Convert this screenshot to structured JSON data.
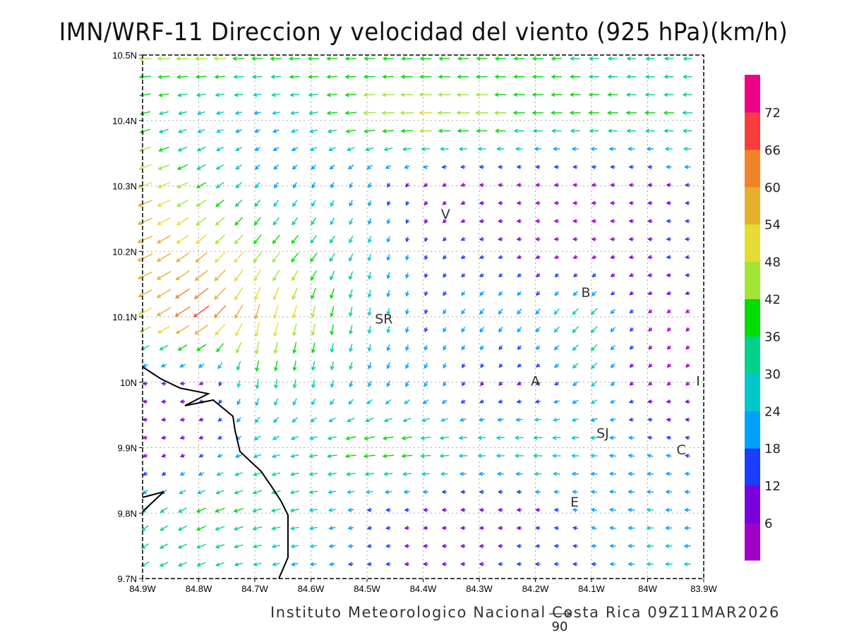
{
  "title": "IMN/WRF-11 Direccion y velocidad del viento (925 hPa)(km/h)",
  "footer": "Instituto Meteorologico Nacional Costa Rica 09Z11MAR2026",
  "reference_vector": {
    "label": "90",
    "speed_kmh": 90
  },
  "chart_data": {
    "type": "vector-field",
    "title": "IMN/WRF-11 Direccion y velocidad del viento (925 hPa)(km/h)",
    "units": "km/h",
    "lon_range": [
      -84.9,
      -83.9
    ],
    "lat_range": [
      9.7,
      10.5
    ],
    "grid": true,
    "x_tick_labels": [
      "84.9W",
      "84.8W",
      "84.7W",
      "84.6W",
      "84.5W",
      "84.4W",
      "84.3W",
      "84.2W",
      "84.1W",
      "84W",
      "83.9W"
    ],
    "y_tick_labels": [
      "10.5N",
      "10.4N",
      "10.3N",
      "10.2N",
      "10.1N",
      "10N",
      "9.9N",
      "9.8N",
      "9.7N"
    ],
    "coarse_lats": [
      10.5,
      10.4,
      10.3,
      10.2,
      10.1,
      10.0,
      9.9,
      9.8,
      9.7
    ],
    "coarse_lons": [
      -84.9,
      -84.8,
      -84.7,
      -84.6,
      -84.5,
      -84.4,
      -84.3,
      -84.2,
      -84.1,
      -84.0,
      -83.9
    ],
    "u": [
      [
        -45,
        -45,
        -42,
        -40,
        -38,
        -38,
        -38,
        -38,
        -35,
        -30,
        -30
      ],
      [
        -35,
        -25,
        -20,
        -30,
        -45,
        -50,
        -45,
        -40,
        -38,
        -38,
        -35
      ],
      [
        -50,
        -35,
        -15,
        -10,
        -8,
        -5,
        -5,
        -3,
        -3,
        -5,
        -20
      ],
      [
        -55,
        -40,
        -30,
        -25,
        -8,
        -5,
        -15,
        -5,
        -3,
        -10,
        -20
      ],
      [
        -45,
        -60,
        -15,
        -10,
        -5,
        -5,
        -15,
        -15,
        -25,
        -3,
        -3
      ],
      [
        -10,
        -5,
        -5,
        -5,
        -8,
        -10,
        -5,
        -10,
        -20,
        -3,
        -3
      ],
      [
        -5,
        -8,
        -25,
        -30,
        -45,
        -40,
        -30,
        -35,
        -25,
        -20,
        -15
      ],
      [
        -20,
        -35,
        -35,
        -30,
        -15,
        -10,
        -5,
        -10,
        -20,
        -25,
        -20
      ],
      [
        -30,
        -30,
        -25,
        -20,
        -15,
        -10,
        -10,
        -20,
        -15,
        -25,
        -25
      ]
    ],
    "v": [
      [
        0,
        0,
        0,
        0,
        0,
        0,
        0,
        0,
        0,
        0,
        0
      ],
      [
        -10,
        -8,
        -5,
        -5,
        -3,
        0,
        0,
        0,
        0,
        0,
        0
      ],
      [
        -20,
        -20,
        -20,
        -20,
        -18,
        -5,
        0,
        0,
        0,
        0,
        0
      ],
      [
        -25,
        -35,
        -35,
        -30,
        -25,
        -15,
        -3,
        0,
        0,
        0,
        0
      ],
      [
        -25,
        -40,
        -55,
        -45,
        -30,
        -15,
        -20,
        -20,
        -25,
        -3,
        -3
      ],
      [
        0,
        0,
        -35,
        -30,
        -20,
        -20,
        -10,
        -3,
        -20,
        -3,
        -3
      ],
      [
        0,
        -3,
        -10,
        -5,
        -5,
        -3,
        0,
        0,
        0,
        5,
        3
      ],
      [
        -20,
        -15,
        -10,
        -5,
        -3,
        0,
        0,
        0,
        5,
        0,
        0
      ],
      [
        -15,
        -10,
        -5,
        -3,
        -3,
        0,
        0,
        0,
        0,
        0,
        0
      ]
    ],
    "colorbar": {
      "levels": [
        "6",
        "12",
        "18",
        "24",
        "30",
        "36",
        "42",
        "48",
        "54",
        "60",
        "66",
        "72"
      ],
      "colors": [
        "#a000c8",
        "#7800dc",
        "#1e3cff",
        "#00a0ff",
        "#00c8c8",
        "#00d28c",
        "#00dc00",
        "#a0e632",
        "#e6dc32",
        "#e6af2d",
        "#f08228",
        "#fa3c3c",
        "#f00082"
      ]
    },
    "cities": [
      {
        "label": "V",
        "lon": -84.36,
        "lat": 10.25
      },
      {
        "label": "B",
        "lon": -84.11,
        "lat": 10.13
      },
      {
        "label": "SR",
        "lon": -84.47,
        "lat": 10.09
      },
      {
        "label": "A",
        "lon": -84.2,
        "lat": 9.995
      },
      {
        "label": "I",
        "lon": -83.91,
        "lat": 9.995
      },
      {
        "label": "SJ",
        "lon": -84.08,
        "lat": 9.915
      },
      {
        "label": "C",
        "lon": -83.94,
        "lat": 9.89
      },
      {
        "label": "E",
        "lon": -84.13,
        "lat": 9.81
      }
    ]
  }
}
